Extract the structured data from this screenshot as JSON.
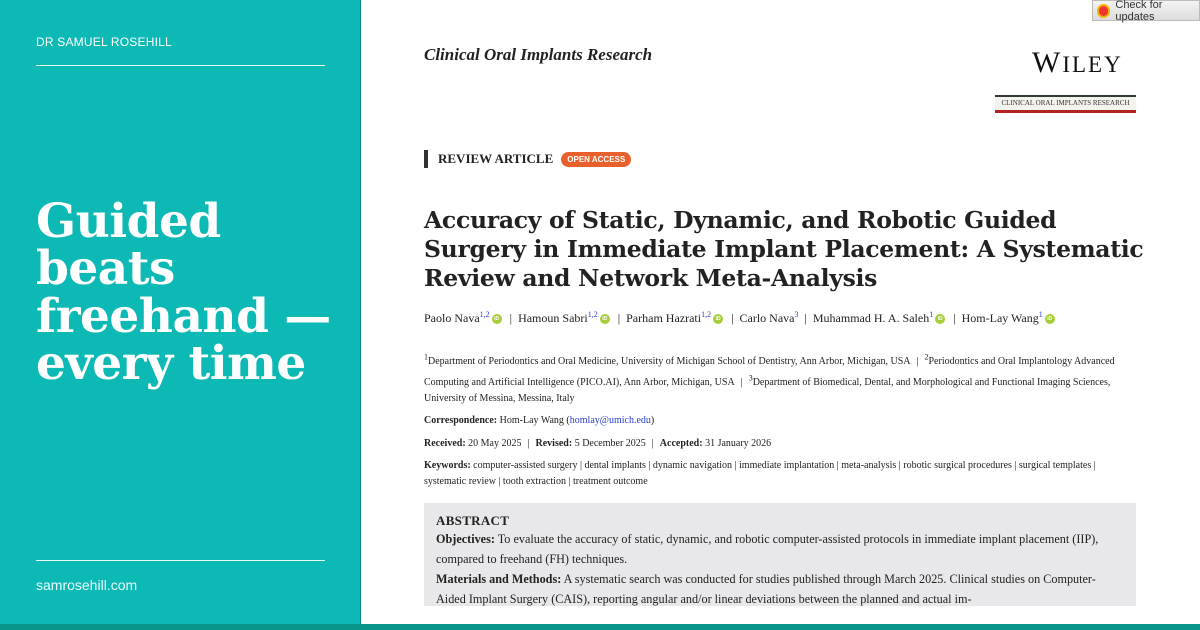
{
  "sidebar": {
    "author": "DR SAMUEL ROSEHILL",
    "headline": "Guided beats freehand — every time",
    "site": "samrosehill.com",
    "bg_color": "#0db9b4"
  },
  "doc": {
    "journal": "Clinical Oral Implants Research",
    "publisher": "WILEY",
    "journal_banner": "CLINICAL ORAL IMPLANTS RESEARCH",
    "check_updates": "Check for updates",
    "article_type": "REVIEW ARTICLE",
    "open_access": "OPEN ACCESS",
    "title": "Accuracy of Static, Dynamic, and Robotic Guided Surgery in Immediate Implant Placement: A Systematic Review and Network Meta-Analysis",
    "authors": [
      {
        "name": "Paolo Nava",
        "sup": "1,2",
        "orcid": true
      },
      {
        "name": "Hamoun Sabri",
        "sup": "1,2",
        "orcid": true
      },
      {
        "name": "Parham Hazrati",
        "sup": "1,2",
        "orcid": true
      },
      {
        "name": "Carlo Nava",
        "sup": "3",
        "orcid": false
      },
      {
        "name": "Muhammad H. A. Saleh",
        "sup": "1",
        "orcid": true
      },
      {
        "name": "Hom-Lay Wang",
        "sup": "1",
        "orcid": true
      }
    ],
    "affiliations": [
      {
        "sup": "1",
        "text": "Department of Periodontics and Oral Medicine, University of Michigan School of Dentistry, Ann Arbor, Michigan, USA"
      },
      {
        "sup": "2",
        "text": "Periodontics and Oral Implantology Advanced Computing and Artificial Intelligence (PICO.AI), Ann Arbor, Michigan, USA"
      },
      {
        "sup": "3",
        "text": "Department of Biomedical, Dental, and Morphological and Functional Imaging Sciences, University of Messina, Messina, Italy"
      }
    ],
    "correspondence": {
      "label": "Correspondence:",
      "name": "Hom-Lay Wang",
      "email": "homlay@umich.edu"
    },
    "dates": {
      "received_label": "Received:",
      "received": "20 May 2025",
      "revised_label": "Revised:",
      "revised": "5 December 2025",
      "accepted_label": "Accepted:",
      "accepted": "31 January 2026"
    },
    "keywords_label": "Keywords:",
    "keywords": "computer-assisted surgery | dental implants | dynamic navigation | immediate implantation | meta-analysis | robotic surgical procedures | surgical templates | systematic review | tooth extraction | treatment outcome",
    "abstract": {
      "heading": "ABSTRACT",
      "objectives_label": "Objectives:",
      "objectives": "To evaluate the accuracy of static, dynamic, and robotic computer-assisted protocols in immediate implant placement (IIP), compared to freehand (FH) techniques.",
      "methods_label": "Materials and Methods:",
      "methods": "A systematic search was conducted for studies published through March 2025. Clinical studies on Computer-Aided Implant Surgery (CAIS), reporting angular and/or linear deviations between the planned and actual im-"
    }
  }
}
